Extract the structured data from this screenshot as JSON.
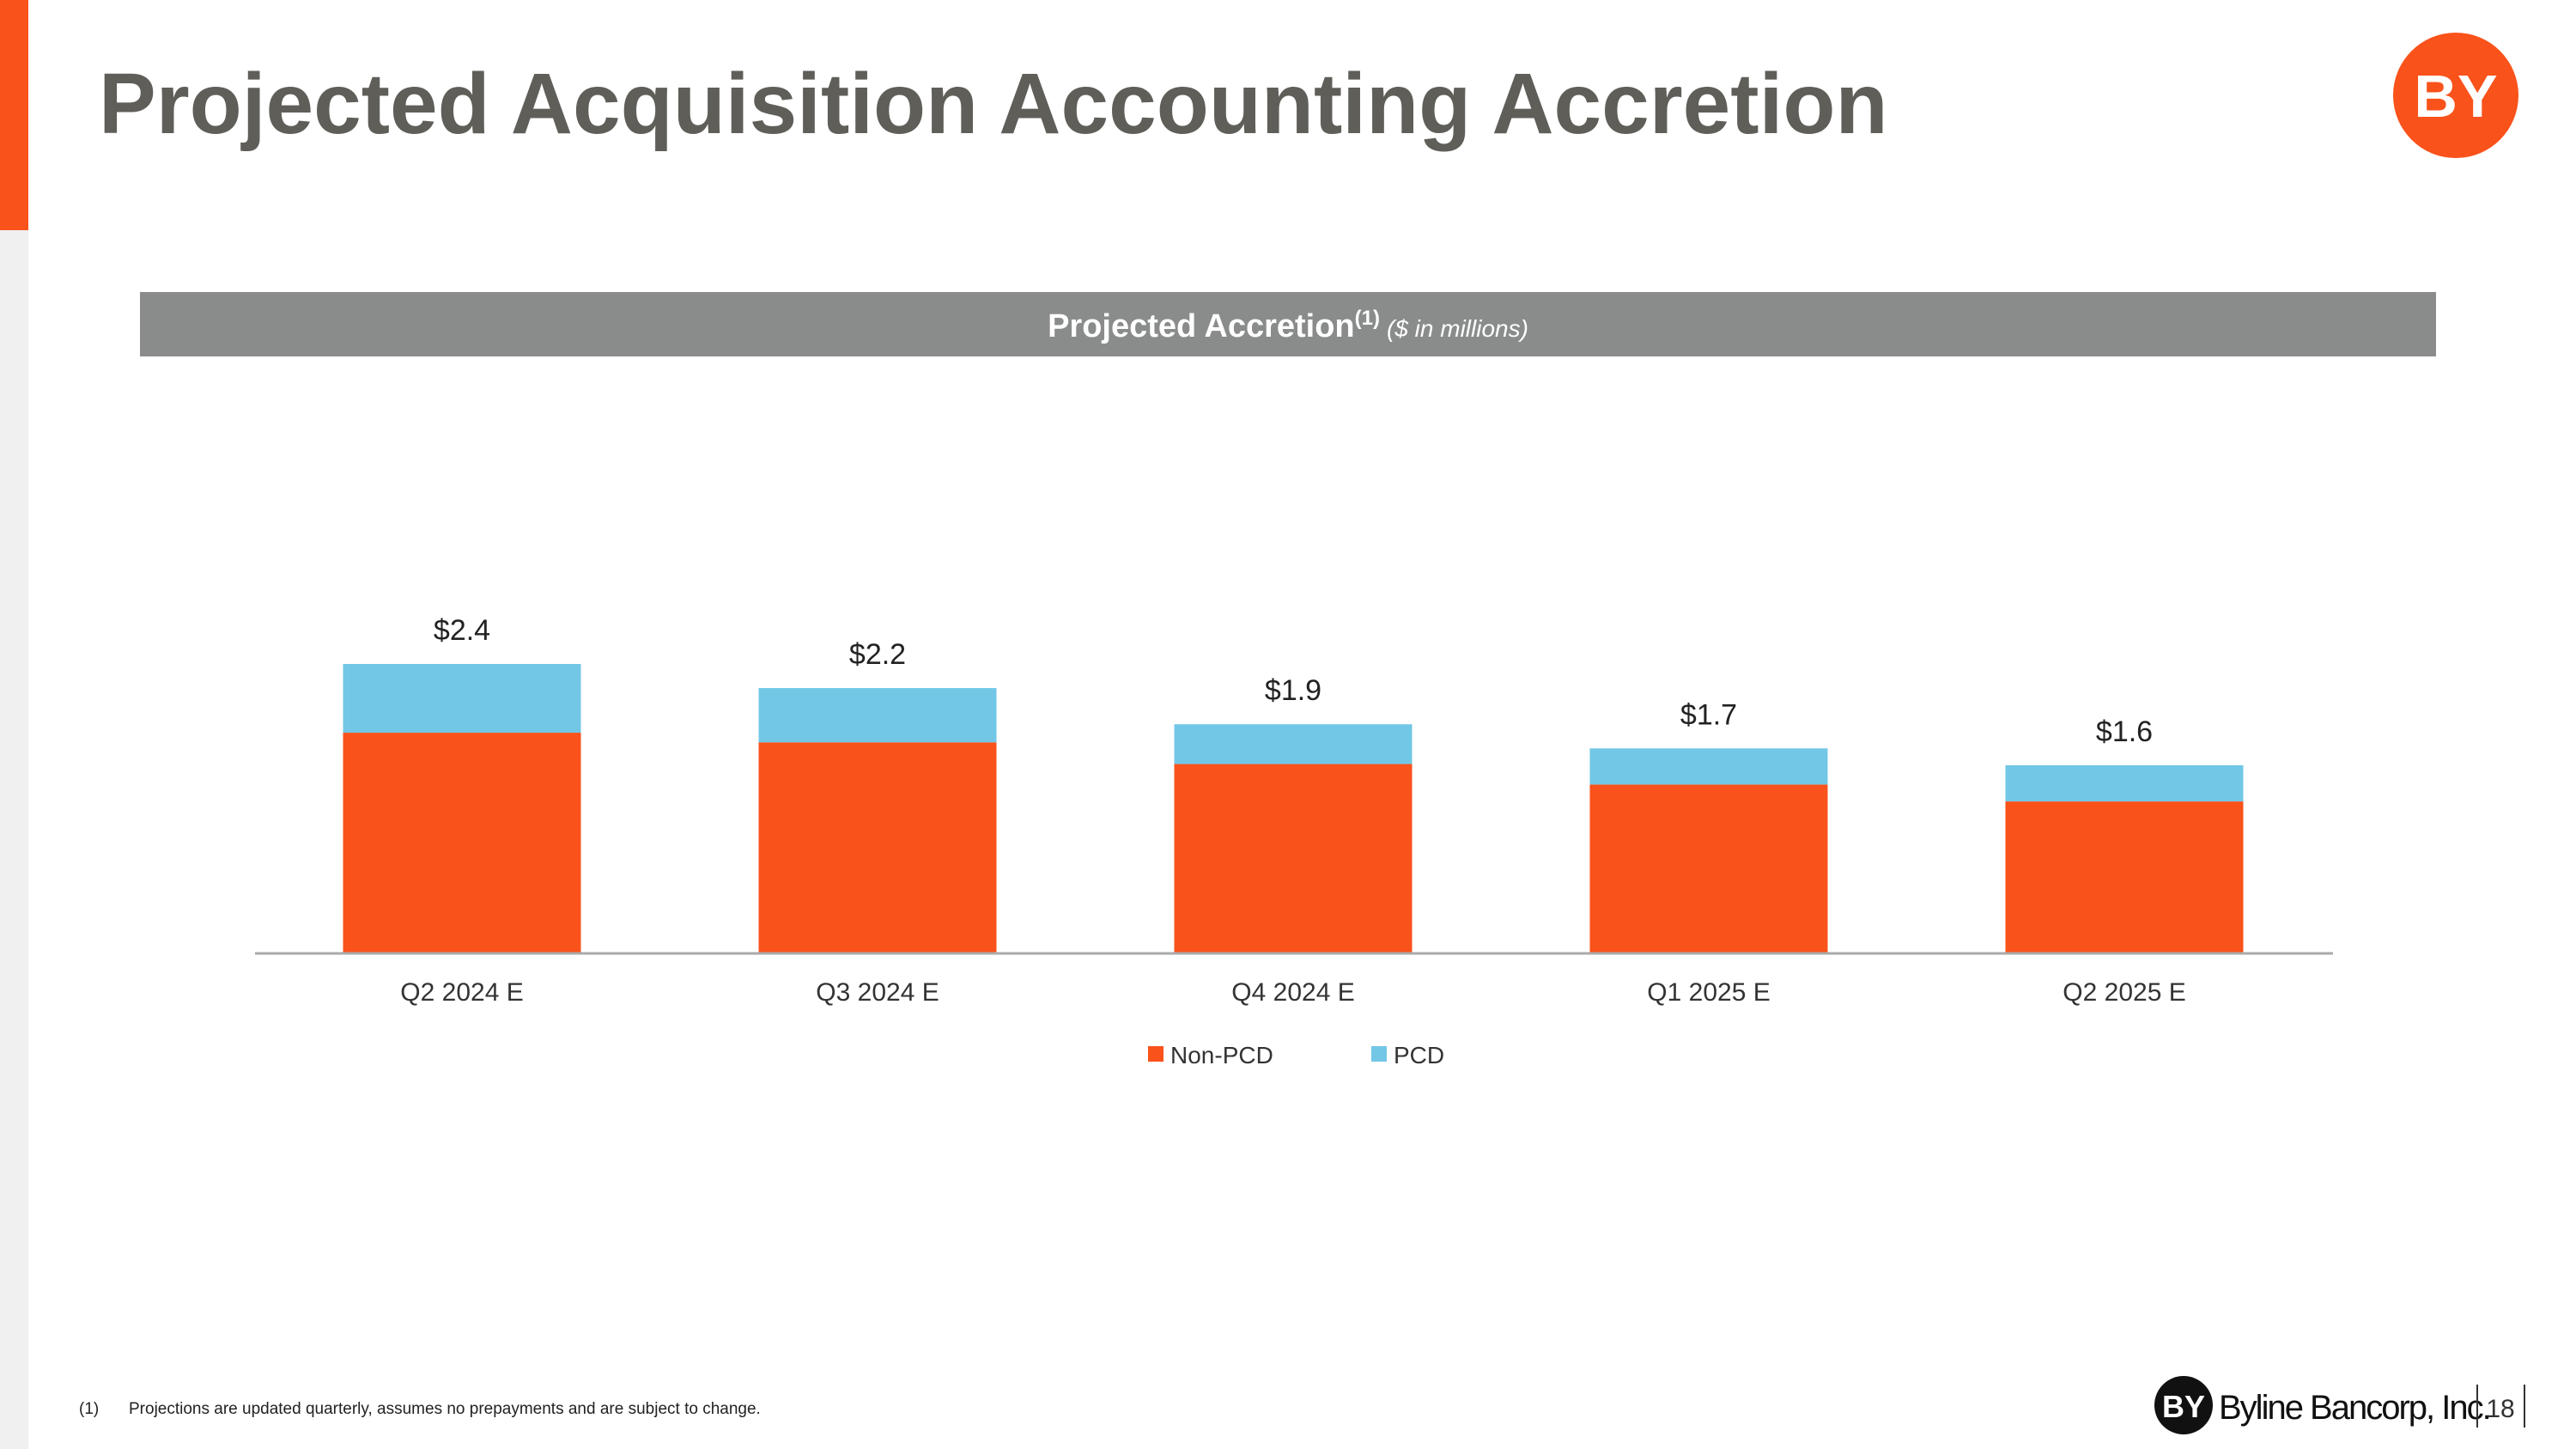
{
  "header": {
    "title": "Projected Acquisition Accounting Accretion",
    "logo": "BY"
  },
  "chart_data": {
    "type": "stacked_bar",
    "title": "Projected Accretion",
    "title_note": "(1)",
    "subtitle": "($ in millions)",
    "categories": [
      "Q2 2024 E",
      "Q3 2024 E",
      "Q4 2024 E",
      "Q1 2025 E",
      "Q2 2025 E"
    ],
    "series": [
      {
        "name": "Non-PCD",
        "color": "#f9521a",
        "values": [
          1.83,
          1.75,
          1.57,
          1.4,
          1.26
        ]
      },
      {
        "name": "PCD",
        "color": "#72c7e6",
        "values": [
          0.57,
          0.45,
          0.33,
          0.3,
          0.3
        ]
      }
    ],
    "total_labels": [
      "$2.4",
      "$2.2",
      "$1.9",
      "$1.7",
      "$1.6"
    ],
    "legend": "bottom"
  },
  "footnote": {
    "marker": "(1)",
    "text": "Projections are updated quarterly, assumes no prepayments and are subject to change."
  },
  "footer": {
    "logo": "BY",
    "company": "Byline Bancorp, Inc.",
    "page": "18"
  }
}
